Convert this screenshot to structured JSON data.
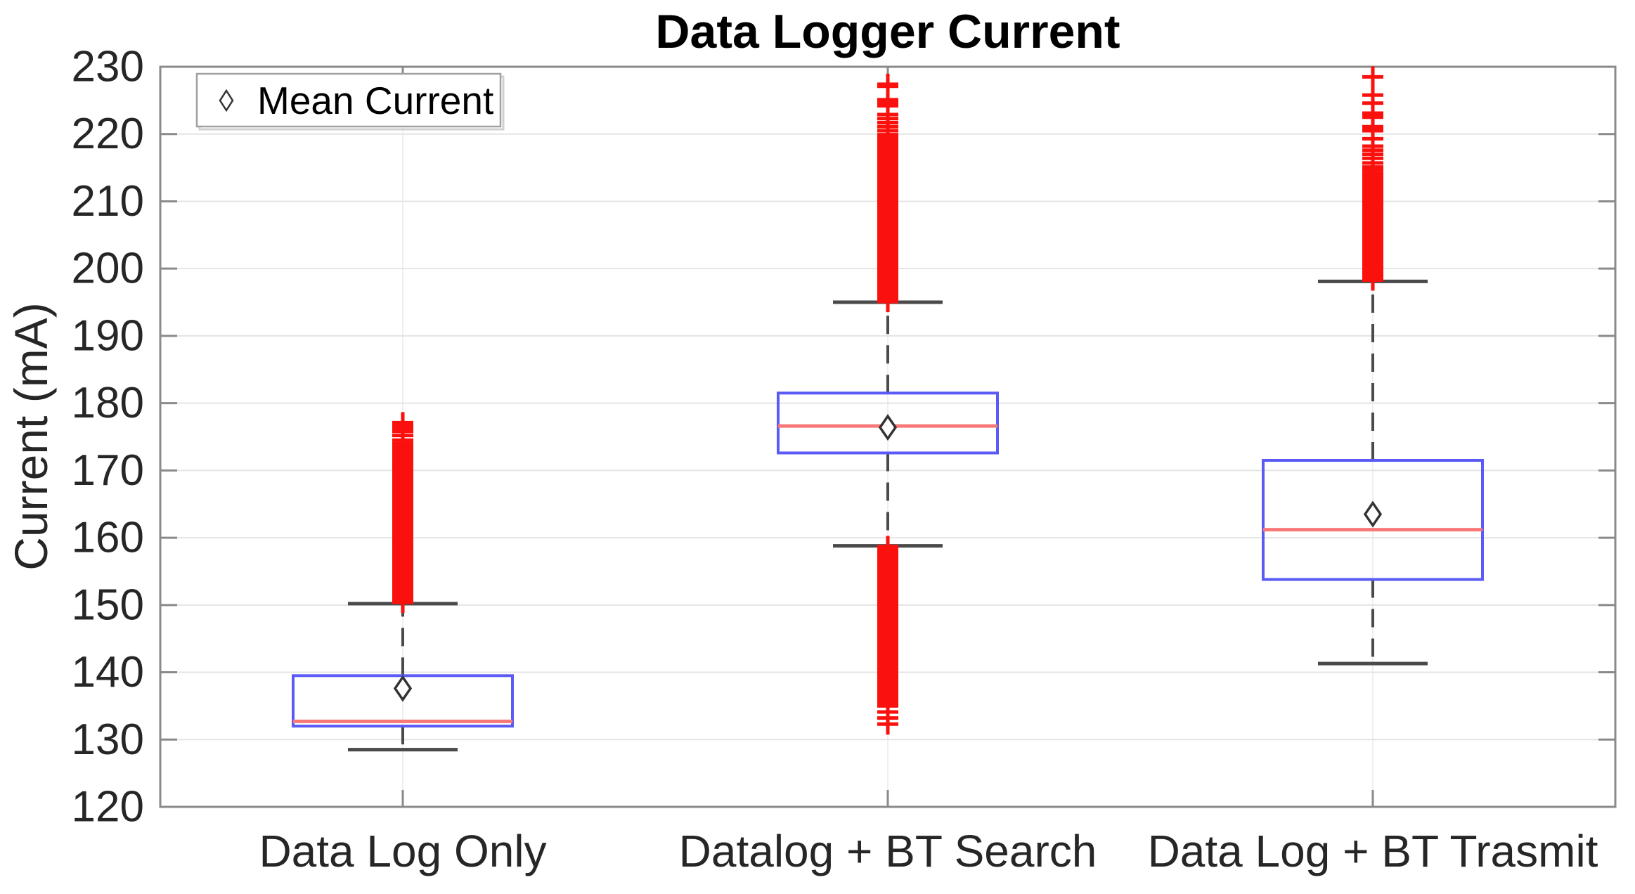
{
  "chart_data": {
    "type": "boxplot",
    "title": "Data Logger Current",
    "ylabel": "Current (mA)",
    "xlabel": "",
    "ylim": [
      120,
      230
    ],
    "yticks": [
      120,
      130,
      140,
      150,
      160,
      170,
      180,
      190,
      200,
      210,
      220,
      230
    ],
    "grid": true,
    "legend": {
      "label": "Mean Current",
      "marker": "diamond",
      "position": "top-left"
    },
    "categories": [
      "Data Log Only",
      "Datalog + BT Search",
      "Data Log + BT Trasmit"
    ],
    "series": [
      {
        "name": "Data Log Only",
        "whisker_low": 128.5,
        "q1": 132.0,
        "median": 132.7,
        "q3": 139.5,
        "whisker_high": 150.2,
        "mean": 137.6,
        "outliers_high": {
          "dense": {
            "from": 150.4,
            "to": 173.0,
            "step": 0.35
          },
          "extra": [
            173.6,
            174.0,
            174.5,
            175.2,
            175.8,
            176.1,
            176.4,
            176.7,
            176.9,
            177.1
          ]
        },
        "outliers_low": null
      },
      {
        "name": "Datalog + BT Search",
        "whisker_low": 158.8,
        "q1": 172.6,
        "median": 176.6,
        "q3": 181.5,
        "whisker_high": 195.0,
        "mean": 176.4,
        "outliers_high": {
          "dense": {
            "from": 195.1,
            "to": 218.9,
            "step": 0.35
          },
          "extra": [
            219.4,
            219.9,
            220.5,
            221.1,
            221.7,
            222.3,
            222.9,
            224.2,
            224.7,
            225.1,
            227.1,
            227.4
          ]
        },
        "outliers_low": {
          "dense": {
            "from": 135.0,
            "to": 158.6,
            "step": 0.3
          },
          "extra": [
            132.3,
            133.2,
            134.1
          ]
        }
      },
      {
        "name": "Data Log + BT Trasmit",
        "whisker_low": 141.3,
        "q1": 153.8,
        "median": 161.2,
        "q3": 171.5,
        "whisker_high": 198.1,
        "mean": 163.5,
        "outliers_high": {
          "dense": {
            "from": 198.3,
            "to": 213.6,
            "step": 0.3
          },
          "extra": [
            214.1,
            214.6,
            215.1,
            215.7,
            216.4,
            217.0,
            217.6,
            218.2,
            219.3,
            220.5,
            220.8,
            221.1,
            222.5,
            222.8,
            223.1,
            224.6,
            225.8,
            228.5
          ]
        },
        "outliers_low": null
      }
    ],
    "colors": {
      "box": "#5a5af5",
      "median": "#f87878",
      "outlier": "#fa100c",
      "whisker": "#4a4a4a",
      "cap": "#4a4a4a",
      "mean_marker": "#333333",
      "spine": "#8a8a8a",
      "grid_h": "#e4e4e4",
      "grid_v": "#efefef",
      "tick_label": "#262626",
      "title": "#000000",
      "legend_border": "#a0a0a0",
      "legend_shadow": "#d0d0d0"
    }
  }
}
